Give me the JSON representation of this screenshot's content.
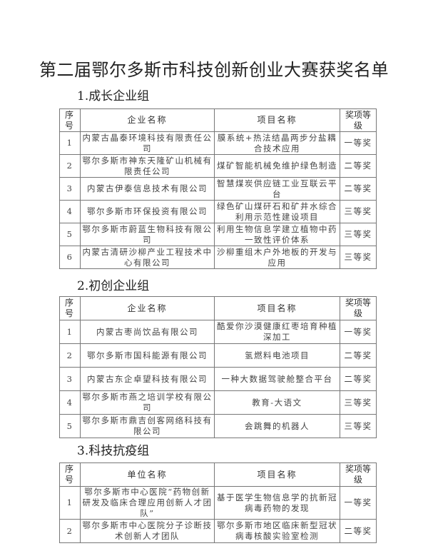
{
  "title": "第二届鄂尔多斯市科技创新创业大赛获奖名单",
  "sections": [
    {
      "heading": "1.成长企业组",
      "headers": [
        "序号",
        "企业名称",
        "项目名称",
        "奖项等级"
      ],
      "rows": [
        [
          "1",
          "内蒙古晶泰环境科技有限责任公司",
          "膜系统+热法结晶两步分盐耦合技术应用",
          "一等奖"
        ],
        [
          "2",
          "鄂尔多斯市神东天隆矿山机械有限责任公司",
          "煤矿智能机械免维护绿色制造",
          "二等奖"
        ],
        [
          "3",
          "内蒙古伊泰信息技术有限公司",
          "智慧煤炭供应链工业互联云平台",
          "二等奖"
        ],
        [
          "4",
          "鄂尔多斯市环保投资有限公司",
          "绿色矿山煤矸石和矿井水综合利用示范性建设项目",
          "三等奖"
        ],
        [
          "5",
          "鄂尔多斯市蔚蓝生物科技有限公司",
          "利用生物信息学建立植物中药一致性评价体系",
          "三等奖"
        ],
        [
          "6",
          "内蒙古清研沙柳产业工程技术中心有限公司",
          "沙柳重组木户外地板的开发与应用",
          "三等奖"
        ]
      ]
    },
    {
      "heading": "2.初创企业组",
      "headers": [
        "序号",
        "企业名称",
        "项目名称",
        "奖项等级"
      ],
      "rows": [
        [
          "1",
          "内蒙古枣尚饮品有限公司",
          "酷爱你沙漠健康红枣培育种植深加工",
          "一等奖"
        ],
        [
          "2",
          "鄂尔多斯市国科能源有限公司",
          "氢燃料电池项目",
          "二等奖"
        ],
        [
          "3",
          "内蒙古东企卓望科技有限公司",
          "一种大数据驾驶舱整合平台",
          "二等奖"
        ],
        [
          "4",
          "鄂尔多斯市燕之培训学校有限公司",
          "教育-大语文",
          "三等奖"
        ],
        [
          "5",
          "鄂尔多斯市鼎吉创客网络科技有限公司",
          "会跳舞的机器人",
          "三等奖"
        ]
      ]
    },
    {
      "heading": "3.科技抗疫组",
      "headers": [
        "序号",
        "单位名称",
        "项目名称",
        "奖项等级"
      ],
      "rows": [
        [
          "1",
          "鄂尔多斯市中心医院“药物创新研发及临床合理应用创新人才团队”",
          "基于医学生物信息学的抗新冠病毒药物的发现",
          "一等奖"
        ],
        [
          "2",
          "鄂尔多斯市中心医院分子诊断技术创新人才团队",
          "鄂尔多斯市地区临床新型冠状病毒核酸实验室检测",
          "二等奖"
        ]
      ]
    }
  ]
}
